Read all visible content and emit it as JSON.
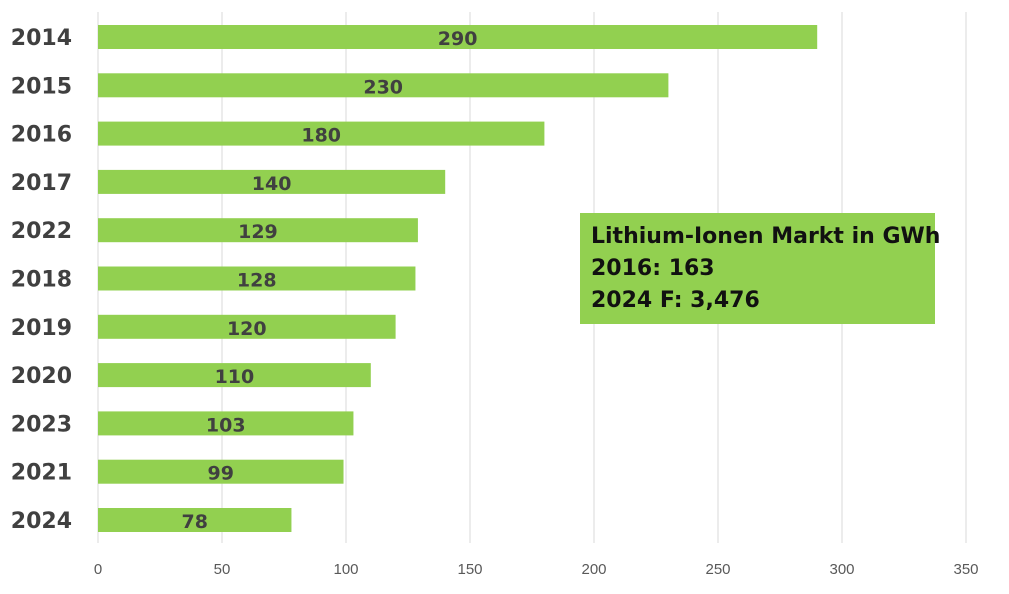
{
  "chart_data": {
    "type": "bar",
    "orientation": "horizontal",
    "categories": [
      "2014",
      "2015",
      "2016",
      "2017",
      "2022",
      "2018",
      "2019",
      "2020",
      "2023",
      "2021",
      "2024"
    ],
    "values": [
      290,
      230,
      180,
      140,
      129,
      128,
      120,
      110,
      103,
      99,
      78
    ],
    "data_labels": [
      "290",
      "230",
      "180",
      "140",
      "129",
      "128",
      "120",
      "110",
      "103",
      "99",
      "78"
    ],
    "xlim": [
      0,
      350
    ],
    "x_ticks": [
      "0",
      "50",
      "100",
      "150",
      "200",
      "250",
      "300",
      "350"
    ],
    "x_tick_values": [
      0,
      50,
      100,
      150,
      200,
      250,
      300,
      350
    ],
    "grid": "vertical",
    "bar_color": "#92d050",
    "grid_color": "#d9d9d9",
    "label_color": "#404040",
    "title": "",
    "xlabel": "",
    "ylabel": ""
  },
  "annotation": {
    "lines": [
      "Lithium-Ionen Markt in GWh",
      "2016: 163",
      "2024 F: 3,476"
    ],
    "background": "#92d050"
  }
}
